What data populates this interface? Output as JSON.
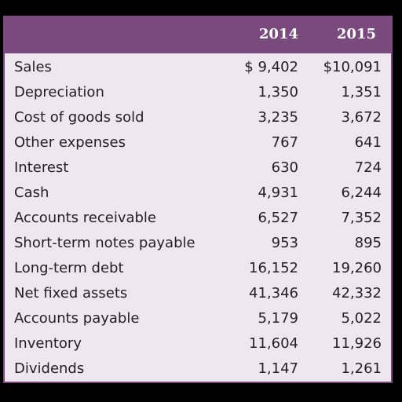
{
  "table": {
    "headers": [
      "2014",
      "2015"
    ],
    "rows": [
      {
        "label": "Sales",
        "v2014": "$ 9,402",
        "v2015": "$10,091"
      },
      {
        "label": "Depreciation",
        "v2014": "1,350",
        "v2015": "1,351"
      },
      {
        "label": "Cost of goods sold",
        "v2014": "3,235",
        "v2015": "3,672"
      },
      {
        "label": "Other expenses",
        "v2014": "767",
        "v2015": "641"
      },
      {
        "label": "Interest",
        "v2014": "630",
        "v2015": "724"
      },
      {
        "label": "Cash",
        "v2014": "4,931",
        "v2015": "6,244"
      },
      {
        "label": "Accounts receivable",
        "v2014": "6,527",
        "v2015": "7,352"
      },
      {
        "label": "Short-term notes payable",
        "v2014": "953",
        "v2015": "895"
      },
      {
        "label": "Long-term debt",
        "v2014": "16,152",
        "v2015": "19,260"
      },
      {
        "label": "Net fixed assets",
        "v2014": "41,346",
        "v2015": "42,332"
      },
      {
        "label": "Accounts payable",
        "v2014": "5,179",
        "v2015": "5,022"
      },
      {
        "label": "Inventory",
        "v2014": "11,604",
        "v2015": "11,926"
      },
      {
        "label": "Dividends",
        "v2014": "1,147",
        "v2015": "1,261"
      }
    ]
  },
  "colors": {
    "header_bg": "#7a4a7f",
    "panel_bg": "#efe7ef",
    "text": "#231f20"
  }
}
